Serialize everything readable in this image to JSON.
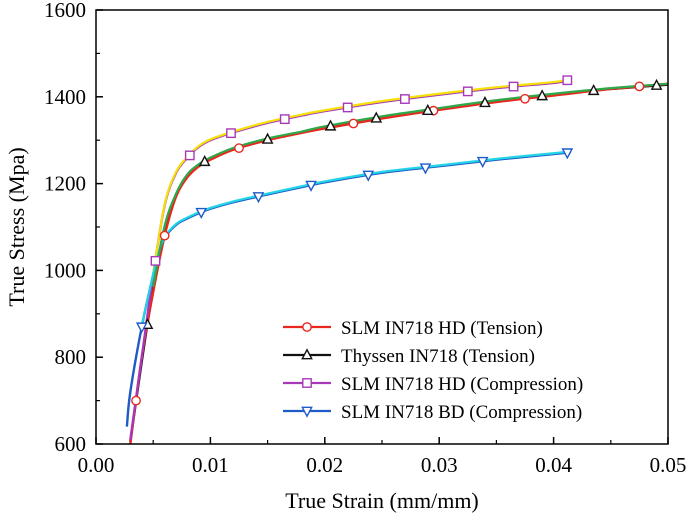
{
  "chart_data": {
    "type": "line",
    "xlabel": "True Strain (mm/mm)",
    "ylabel": "True Stress (Mpa)",
    "xlim": [
      0.0,
      0.05
    ],
    "ylim": [
      600,
      1600
    ],
    "x_ticks": [
      "0.00",
      "0.01",
      "0.02",
      "0.03",
      "0.04",
      "0.05"
    ],
    "y_ticks": [
      "600",
      "800",
      "1000",
      "1200",
      "1400",
      "1600"
    ],
    "grid": false,
    "legend_position": "bottom-right",
    "series": [
      {
        "name": "SLM IN718 HD (Tension)",
        "color": "#e8281e",
        "marker": "circle",
        "x": [
          0.003,
          0.004,
          0.005,
          0.006,
          0.007,
          0.008,
          0.009,
          0.01,
          0.012,
          0.015,
          0.018,
          0.02,
          0.025,
          0.03,
          0.035,
          0.04,
          0.045,
          0.05
        ],
        "y": [
          600,
          800,
          950,
          1080,
          1170,
          1215,
          1240,
          1255,
          1278,
          1300,
          1317,
          1327,
          1350,
          1370,
          1388,
          1403,
          1418,
          1430
        ]
      },
      {
        "name": "Thyssen IN718 (Tension)",
        "color": "#111111",
        "marker": "triangle-up",
        "x": [
          0.003,
          0.004,
          0.005,
          0.006,
          0.007,
          0.008,
          0.009,
          0.01,
          0.012,
          0.015,
          0.018,
          0.02,
          0.025,
          0.03,
          0.035,
          0.04,
          0.045,
          0.05
        ],
        "y": [
          605,
          790,
          960,
          1100,
          1175,
          1220,
          1243,
          1258,
          1280,
          1302,
          1318,
          1330,
          1353,
          1372,
          1390,
          1405,
          1418,
          1428
        ]
      },
      {
        "name": "SLM IN718 HD (Compression)",
        "color": "#a838b8",
        "marker": "square",
        "x": [
          0.003,
          0.004,
          0.005,
          0.006,
          0.007,
          0.008,
          0.009,
          0.01,
          0.012,
          0.015,
          0.018,
          0.02,
          0.025,
          0.03,
          0.035,
          0.04,
          0.041,
          0.0415
        ],
        "y": [
          610,
          800,
          990,
          1150,
          1225,
          1260,
          1285,
          1300,
          1318,
          1340,
          1357,
          1367,
          1388,
          1405,
          1420,
          1432,
          1437,
          1440
        ]
      },
      {
        "name": "SLM IN718 BD (Compression)",
        "color": "#1e5ac8",
        "marker": "triangle-down",
        "x": [
          0.0027,
          0.003,
          0.004,
          0.005,
          0.0055,
          0.006,
          0.007,
          0.008,
          0.009,
          0.01,
          0.012,
          0.015,
          0.018,
          0.02,
          0.025,
          0.03,
          0.035,
          0.04,
          0.0415
        ],
        "y": [
          640,
          720,
          870,
          990,
          1040,
          1075,
          1105,
          1120,
          1132,
          1142,
          1157,
          1175,
          1192,
          1203,
          1225,
          1240,
          1255,
          1268,
          1272
        ]
      }
    ],
    "overlay_curves": [
      {
        "color": "#f5e10a",
        "follows": "SLM IN718 HD (Compression)"
      },
      {
        "color": "#22d4e6",
        "follows": "SLM IN718 BD (Compression)"
      },
      {
        "color": "#2ea84a",
        "follows": "Thyssen IN718 (Tension)"
      }
    ]
  }
}
